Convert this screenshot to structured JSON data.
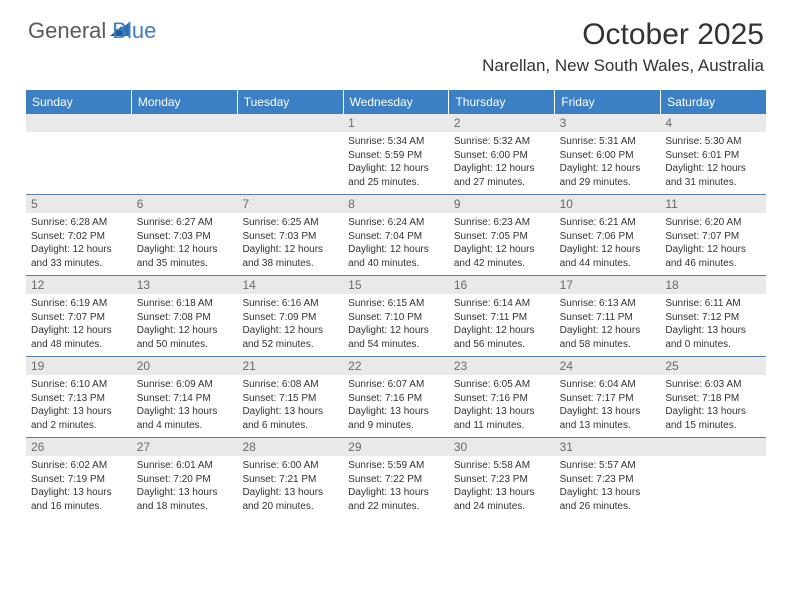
{
  "logo": {
    "text_general": "General",
    "text_blue": "Blue",
    "triangle_color": "#2d6fb5"
  },
  "header": {
    "month_title": "October 2025",
    "location": "Narellan, New South Wales, Australia"
  },
  "colors": {
    "header_bg": "#3b7fc4",
    "header_text": "#ffffff",
    "numstrip_bg": "#e9e9e9",
    "row_divider": "#5a7fa8",
    "text": "#333333",
    "daynum": "#6a6a6a"
  },
  "day_names": [
    "Sunday",
    "Monday",
    "Tuesday",
    "Wednesday",
    "Thursday",
    "Friday",
    "Saturday"
  ],
  "weeks": [
    [
      {
        "num": "",
        "sunrise": "",
        "sunset": "",
        "daylight": ""
      },
      {
        "num": "",
        "sunrise": "",
        "sunset": "",
        "daylight": ""
      },
      {
        "num": "",
        "sunrise": "",
        "sunset": "",
        "daylight": ""
      },
      {
        "num": "1",
        "sunrise": "Sunrise: 5:34 AM",
        "sunset": "Sunset: 5:59 PM",
        "daylight": "Daylight: 12 hours and 25 minutes."
      },
      {
        "num": "2",
        "sunrise": "Sunrise: 5:32 AM",
        "sunset": "Sunset: 6:00 PM",
        "daylight": "Daylight: 12 hours and 27 minutes."
      },
      {
        "num": "3",
        "sunrise": "Sunrise: 5:31 AM",
        "sunset": "Sunset: 6:00 PM",
        "daylight": "Daylight: 12 hours and 29 minutes."
      },
      {
        "num": "4",
        "sunrise": "Sunrise: 5:30 AM",
        "sunset": "Sunset: 6:01 PM",
        "daylight": "Daylight: 12 hours and 31 minutes."
      }
    ],
    [
      {
        "num": "5",
        "sunrise": "Sunrise: 6:28 AM",
        "sunset": "Sunset: 7:02 PM",
        "daylight": "Daylight: 12 hours and 33 minutes."
      },
      {
        "num": "6",
        "sunrise": "Sunrise: 6:27 AM",
        "sunset": "Sunset: 7:03 PM",
        "daylight": "Daylight: 12 hours and 35 minutes."
      },
      {
        "num": "7",
        "sunrise": "Sunrise: 6:25 AM",
        "sunset": "Sunset: 7:03 PM",
        "daylight": "Daylight: 12 hours and 38 minutes."
      },
      {
        "num": "8",
        "sunrise": "Sunrise: 6:24 AM",
        "sunset": "Sunset: 7:04 PM",
        "daylight": "Daylight: 12 hours and 40 minutes."
      },
      {
        "num": "9",
        "sunrise": "Sunrise: 6:23 AM",
        "sunset": "Sunset: 7:05 PM",
        "daylight": "Daylight: 12 hours and 42 minutes."
      },
      {
        "num": "10",
        "sunrise": "Sunrise: 6:21 AM",
        "sunset": "Sunset: 7:06 PM",
        "daylight": "Daylight: 12 hours and 44 minutes."
      },
      {
        "num": "11",
        "sunrise": "Sunrise: 6:20 AM",
        "sunset": "Sunset: 7:07 PM",
        "daylight": "Daylight: 12 hours and 46 minutes."
      }
    ],
    [
      {
        "num": "12",
        "sunrise": "Sunrise: 6:19 AM",
        "sunset": "Sunset: 7:07 PM",
        "daylight": "Daylight: 12 hours and 48 minutes."
      },
      {
        "num": "13",
        "sunrise": "Sunrise: 6:18 AM",
        "sunset": "Sunset: 7:08 PM",
        "daylight": "Daylight: 12 hours and 50 minutes."
      },
      {
        "num": "14",
        "sunrise": "Sunrise: 6:16 AM",
        "sunset": "Sunset: 7:09 PM",
        "daylight": "Daylight: 12 hours and 52 minutes."
      },
      {
        "num": "15",
        "sunrise": "Sunrise: 6:15 AM",
        "sunset": "Sunset: 7:10 PM",
        "daylight": "Daylight: 12 hours and 54 minutes."
      },
      {
        "num": "16",
        "sunrise": "Sunrise: 6:14 AM",
        "sunset": "Sunset: 7:11 PM",
        "daylight": "Daylight: 12 hours and 56 minutes."
      },
      {
        "num": "17",
        "sunrise": "Sunrise: 6:13 AM",
        "sunset": "Sunset: 7:11 PM",
        "daylight": "Daylight: 12 hours and 58 minutes."
      },
      {
        "num": "18",
        "sunrise": "Sunrise: 6:11 AM",
        "sunset": "Sunset: 7:12 PM",
        "daylight": "Daylight: 13 hours and 0 minutes."
      }
    ],
    [
      {
        "num": "19",
        "sunrise": "Sunrise: 6:10 AM",
        "sunset": "Sunset: 7:13 PM",
        "daylight": "Daylight: 13 hours and 2 minutes."
      },
      {
        "num": "20",
        "sunrise": "Sunrise: 6:09 AM",
        "sunset": "Sunset: 7:14 PM",
        "daylight": "Daylight: 13 hours and 4 minutes."
      },
      {
        "num": "21",
        "sunrise": "Sunrise: 6:08 AM",
        "sunset": "Sunset: 7:15 PM",
        "daylight": "Daylight: 13 hours and 6 minutes."
      },
      {
        "num": "22",
        "sunrise": "Sunrise: 6:07 AM",
        "sunset": "Sunset: 7:16 PM",
        "daylight": "Daylight: 13 hours and 9 minutes."
      },
      {
        "num": "23",
        "sunrise": "Sunrise: 6:05 AM",
        "sunset": "Sunset: 7:16 PM",
        "daylight": "Daylight: 13 hours and 11 minutes."
      },
      {
        "num": "24",
        "sunrise": "Sunrise: 6:04 AM",
        "sunset": "Sunset: 7:17 PM",
        "daylight": "Daylight: 13 hours and 13 minutes."
      },
      {
        "num": "25",
        "sunrise": "Sunrise: 6:03 AM",
        "sunset": "Sunset: 7:18 PM",
        "daylight": "Daylight: 13 hours and 15 minutes."
      }
    ],
    [
      {
        "num": "26",
        "sunrise": "Sunrise: 6:02 AM",
        "sunset": "Sunset: 7:19 PM",
        "daylight": "Daylight: 13 hours and 16 minutes."
      },
      {
        "num": "27",
        "sunrise": "Sunrise: 6:01 AM",
        "sunset": "Sunset: 7:20 PM",
        "daylight": "Daylight: 13 hours and 18 minutes."
      },
      {
        "num": "28",
        "sunrise": "Sunrise: 6:00 AM",
        "sunset": "Sunset: 7:21 PM",
        "daylight": "Daylight: 13 hours and 20 minutes."
      },
      {
        "num": "29",
        "sunrise": "Sunrise: 5:59 AM",
        "sunset": "Sunset: 7:22 PM",
        "daylight": "Daylight: 13 hours and 22 minutes."
      },
      {
        "num": "30",
        "sunrise": "Sunrise: 5:58 AM",
        "sunset": "Sunset: 7:23 PM",
        "daylight": "Daylight: 13 hours and 24 minutes."
      },
      {
        "num": "31",
        "sunrise": "Sunrise: 5:57 AM",
        "sunset": "Sunset: 7:23 PM",
        "daylight": "Daylight: 13 hours and 26 minutes."
      },
      {
        "num": "",
        "sunrise": "",
        "sunset": "",
        "daylight": ""
      }
    ]
  ]
}
